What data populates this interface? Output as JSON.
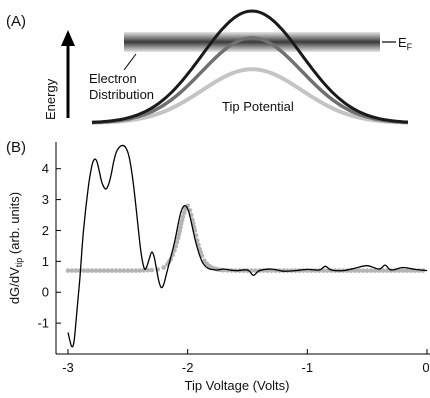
{
  "panel_a": {
    "label": "(A)",
    "energy_label": "Energy",
    "fermi_label": "E",
    "fermi_sub": "F",
    "electron_label_1": "Electron",
    "electron_label_2": "Distribution",
    "tip_label": "Tip Potential",
    "curves": [
      {
        "shade": "dark",
        "color": "#1a1a1a",
        "relative_height": 1.0
      },
      {
        "shade": "medium",
        "color": "#707070",
        "relative_height": 0.76
      },
      {
        "shade": "light",
        "color": "#c4c4c4",
        "relative_height": 0.48
      }
    ]
  },
  "panel_b": {
    "label": "(B)",
    "ylabel_main": "dG/dV",
    "ylabel_sub": "tip",
    "ylabel_units": " (arb. units)",
    "xlabel": "Tip Voltage (Volts)"
  },
  "chart_data": {
    "type": "line",
    "xlim": [
      -3.05,
      0
    ],
    "ylim": [
      -2.0,
      4.8
    ],
    "xticks": [
      -3,
      -2,
      -1,
      0
    ],
    "xtick_labels": [
      "-3",
      "-2",
      "-1",
      "0"
    ],
    "yticks": [
      -1,
      0,
      1,
      2,
      3,
      4
    ],
    "ytick_labels": [
      "-1",
      "0",
      "1",
      "2",
      "3",
      "4"
    ],
    "xlabel": "Tip Voltage (Volts)",
    "ylabel": "dG/dV tip (arb. units)",
    "grid": false,
    "series": [
      {
        "style": "solid-black",
        "color": "#000000",
        "x": [
          -3.0,
          -2.97,
          -2.95,
          -2.93,
          -2.9,
          -2.87,
          -2.83,
          -2.8,
          -2.78,
          -2.76,
          -2.74,
          -2.72,
          -2.7,
          -2.68,
          -2.66,
          -2.64,
          -2.62,
          -2.6,
          -2.58,
          -2.55,
          -2.52,
          -2.49,
          -2.46,
          -2.43,
          -2.4,
          -2.38,
          -2.36,
          -2.34,
          -2.32,
          -2.3,
          -2.28,
          -2.26,
          -2.24,
          -2.22,
          -2.2,
          -2.18,
          -2.16,
          -2.14,
          -2.12,
          -2.1,
          -2.08,
          -2.06,
          -2.04,
          -2.02,
          -2.0,
          -1.98,
          -1.96,
          -1.94,
          -1.92,
          -1.9,
          -1.88,
          -1.86,
          -1.84,
          -1.82,
          -1.8,
          -1.75,
          -1.7,
          -1.6,
          -1.5,
          -1.45,
          -1.4,
          -1.3,
          -1.2,
          -1.1,
          -1.0,
          -0.9,
          -0.85,
          -0.8,
          -0.7,
          -0.6,
          -0.5,
          -0.4,
          -0.35,
          -0.3,
          -0.2,
          -0.1,
          0.0
        ],
        "y": [
          -1.3,
          -1.75,
          -1.6,
          -0.8,
          0.5,
          2.0,
          3.4,
          4.1,
          4.3,
          4.25,
          3.95,
          3.6,
          3.4,
          3.35,
          3.5,
          3.8,
          4.2,
          4.5,
          4.65,
          4.75,
          4.7,
          4.4,
          3.7,
          2.7,
          1.6,
          1.05,
          0.75,
          0.85,
          1.1,
          1.3,
          1.15,
          0.75,
          0.35,
          0.15,
          0.25,
          0.55,
          0.85,
          1.15,
          1.45,
          1.8,
          2.2,
          2.55,
          2.75,
          2.8,
          2.7,
          2.45,
          2.1,
          1.75,
          1.45,
          1.2,
          1.0,
          0.88,
          0.8,
          0.76,
          0.74,
          0.72,
          0.75,
          0.7,
          0.72,
          0.55,
          0.7,
          0.75,
          0.68,
          0.7,
          0.74,
          0.72,
          0.84,
          0.72,
          0.7,
          0.78,
          0.86,
          0.75,
          0.88,
          0.72,
          0.8,
          0.74,
          0.7
        ]
      },
      {
        "style": "gray-dots",
        "color": "#b4b4b4",
        "x": [
          -3.0,
          -2.9,
          -2.8,
          -2.7,
          -2.6,
          -2.5,
          -2.4,
          -2.3,
          -2.25,
          -2.2,
          -2.17,
          -2.14,
          -2.11,
          -2.08,
          -2.06,
          -2.04,
          -2.02,
          -2.0,
          -1.98,
          -1.96,
          -1.94,
          -1.92,
          -1.9,
          -1.88,
          -1.86,
          -1.84,
          -1.82,
          -1.8,
          -1.78,
          -1.76,
          -1.74,
          -1.72,
          -1.7,
          -1.6,
          -1.5,
          -1.4,
          -1.3,
          -1.2,
          -1.1,
          -1.0,
          -0.9,
          -0.8,
          -0.7,
          -0.6,
          -0.5,
          -0.4,
          -0.3,
          -0.2,
          -0.1,
          0.0
        ],
        "y": [
          0.7,
          0.7,
          0.7,
          0.7,
          0.7,
          0.7,
          0.7,
          0.72,
          0.74,
          0.8,
          0.9,
          1.08,
          1.35,
          1.75,
          2.1,
          2.45,
          2.7,
          2.8,
          2.65,
          2.35,
          2.0,
          1.68,
          1.4,
          1.18,
          1.02,
          0.92,
          0.85,
          0.8,
          0.77,
          0.75,
          0.73,
          0.72,
          0.71,
          0.7,
          0.7,
          0.7,
          0.7,
          0.7,
          0.7,
          0.7,
          0.7,
          0.7,
          0.7,
          0.7,
          0.7,
          0.7,
          0.7,
          0.7,
          0.7,
          0.7
        ]
      }
    ]
  }
}
